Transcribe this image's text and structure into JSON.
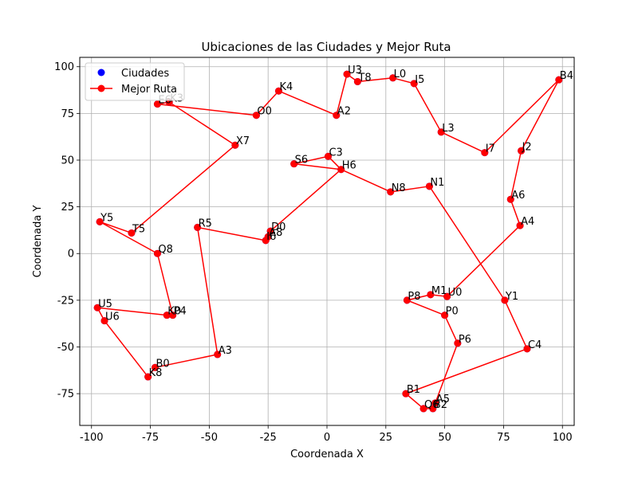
{
  "chart_data": {
    "type": "scatter",
    "title": "Ubicaciones de las Ciudades y Mejor Ruta",
    "xlabel": "Coordenada X",
    "ylabel": "Coordenada Y",
    "xlim": [
      -105,
      105
    ],
    "ylim": [
      -92,
      105
    ],
    "xticks": [
      -100,
      -75,
      -50,
      -25,
      0,
      25,
      50,
      75,
      100
    ],
    "yticks": [
      -75,
      -50,
      -25,
      0,
      25,
      50,
      75,
      100
    ],
    "grid": true,
    "legend_position": "top-left",
    "series": [
      {
        "name": "Ciudades",
        "marker": "circle",
        "color": "#0000ff"
      },
      {
        "name": "Mejor Ruta",
        "marker": "circle-line",
        "color": "#ff0000"
      }
    ],
    "points": [
      {
        "label": "U3",
        "x": 8.5,
        "y": 96
      },
      {
        "label": "T8",
        "x": 13,
        "y": 92
      },
      {
        "label": "L0",
        "x": 28,
        "y": 94
      },
      {
        "label": "I5",
        "x": 37,
        "y": 91
      },
      {
        "label": "L3",
        "x": 48.5,
        "y": 65
      },
      {
        "label": "I7",
        "x": 67,
        "y": 54
      },
      {
        "label": "B4",
        "x": 98.5,
        "y": 93
      },
      {
        "label": "J2",
        "x": 82.5,
        "y": 55
      },
      {
        "label": "A6",
        "x": 78,
        "y": 29
      },
      {
        "label": "A4",
        "x": 82,
        "y": 15
      },
      {
        "label": "U0",
        "x": 51,
        "y": -23
      },
      {
        "label": "M1",
        "x": 44,
        "y": -22
      },
      {
        "label": "P8",
        "x": 34,
        "y": -25
      },
      {
        "label": "P0",
        "x": 50,
        "y": -33
      },
      {
        "label": "P6",
        "x": 55.5,
        "y": -48
      },
      {
        "label": "A5",
        "x": 46,
        "y": -80
      },
      {
        "label": "B2",
        "x": 45,
        "y": -83
      },
      {
        "label": "Q6",
        "x": 41,
        "y": -83
      },
      {
        "label": "B1",
        "x": 33.5,
        "y": -75
      },
      {
        "label": "C4",
        "x": 85,
        "y": -51
      },
      {
        "label": "Y1",
        "x": 75.5,
        "y": -25
      },
      {
        "label": "N1",
        "x": 43.5,
        "y": 36
      },
      {
        "label": "N8",
        "x": 27,
        "y": 33
      },
      {
        "label": "C3",
        "x": 0.5,
        "y": 52
      },
      {
        "label": "S6",
        "x": -14,
        "y": 48
      },
      {
        "label": "H6",
        "x": 6,
        "y": 45
      },
      {
        "label": "D0",
        "x": -24,
        "y": 12
      },
      {
        "label": "A8",
        "x": -25,
        "y": 9
      },
      {
        "label": "I6",
        "x": -26,
        "y": 7
      },
      {
        "label": "R5",
        "x": -55,
        "y": 14
      },
      {
        "label": "A3",
        "x": -46.5,
        "y": -54
      },
      {
        "label": "B0",
        "x": -73,
        "y": -61
      },
      {
        "label": "K8",
        "x": -76,
        "y": -66
      },
      {
        "label": "U6",
        "x": -94.5,
        "y": -36
      },
      {
        "label": "U5",
        "x": -97.5,
        "y": -29
      },
      {
        "label": "K0",
        "x": -68,
        "y": -33
      },
      {
        "label": "P4",
        "x": -65.5,
        "y": -33
      },
      {
        "label": "Q8",
        "x": -72,
        "y": 0
      },
      {
        "label": "Y5",
        "x": -96.5,
        "y": 17
      },
      {
        "label": "T5",
        "x": -83,
        "y": 11
      },
      {
        "label": "X7",
        "x": -39,
        "y": 58
      },
      {
        "label": "E6",
        "x": -72,
        "y": 80
      },
      {
        "label": "K3",
        "x": -67,
        "y": 81
      },
      {
        "label": "O0",
        "x": -30,
        "y": 74
      },
      {
        "label": "K4",
        "x": -20.5,
        "y": 87
      },
      {
        "label": "A2",
        "x": 4,
        "y": 74
      }
    ],
    "route": [
      "U3",
      "T8",
      "L0",
      "I5",
      "L3",
      "I7",
      "B4",
      "J2",
      "A6",
      "A4",
      "U0",
      "M1",
      "P8",
      "P0",
      "P6",
      "A5",
      "B2",
      "Q6",
      "B1",
      "C4",
      "Y1",
      "N1",
      "N8",
      "H6",
      "C3",
      "S6",
      "H6",
      "D0",
      "A8",
      "I6",
      "R5",
      "A3",
      "B0",
      "K8",
      "U6",
      "U5",
      "K0",
      "P4",
      "Q8",
      "Y5",
      "T5",
      "X7",
      "K3",
      "E6",
      "O0",
      "K4",
      "A2",
      "U3"
    ]
  }
}
